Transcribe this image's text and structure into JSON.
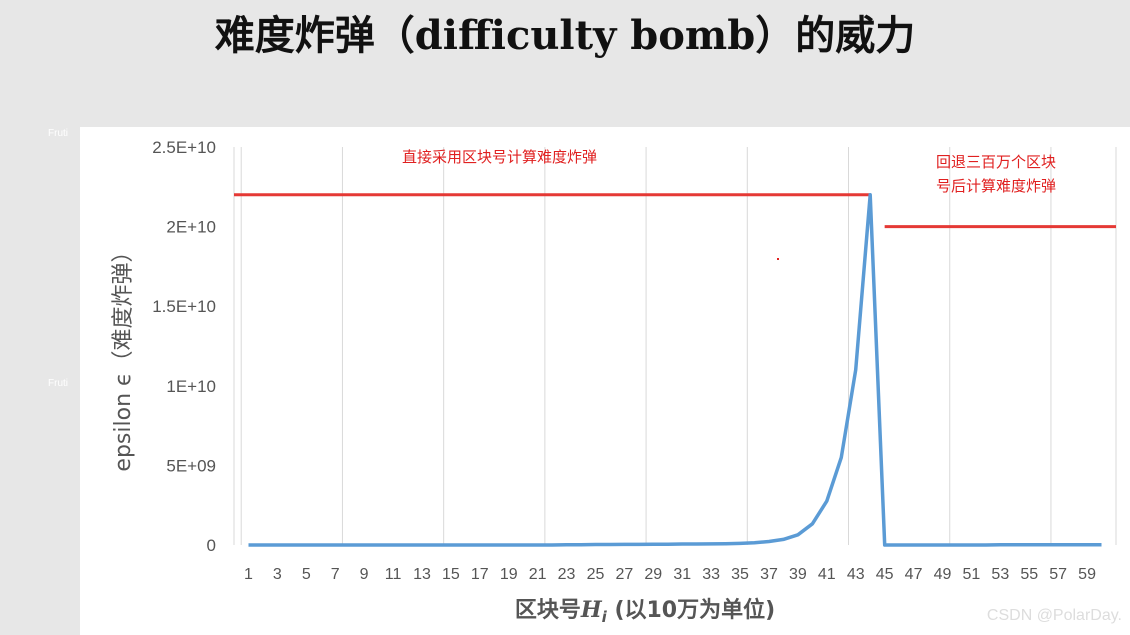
{
  "slide": {
    "title": "难度炸弹（difficulty bomb）的威力",
    "ghost_labels": [
      "Fruti",
      "Fruti"
    ],
    "watermark": "CSDN @PolarDay."
  },
  "chart_data": {
    "type": "line",
    "title": "",
    "xlabel": "区块号",
    "xlabel_var": "H",
    "xlabel_sub": "i",
    "xlabel_suffix": " (以10万为单位)",
    "ylabel": "epsilon ϵ（难度炸弹）",
    "ylim": [
      0,
      25000000000
    ],
    "y_ticks": [
      0,
      5000000000,
      10000000000,
      15000000000,
      20000000000,
      25000000000
    ],
    "y_tick_labels": [
      "0",
      "5E+09",
      "1E+10",
      "1.5E+10",
      "2E+10",
      "2.5E+10"
    ],
    "x_ticks": [
      1,
      3,
      5,
      7,
      9,
      11,
      13,
      15,
      17,
      19,
      21,
      23,
      25,
      27,
      29,
      31,
      33,
      35,
      37,
      39,
      41,
      43,
      45,
      47,
      49,
      51,
      53,
      55,
      57,
      59
    ],
    "grid": "vertical",
    "series": [
      {
        "color": "#5b9bd5",
        "x": [
          1,
          2,
          3,
          4,
          5,
          6,
          7,
          8,
          9,
          10,
          11,
          12,
          13,
          14,
          15,
          16,
          17,
          18,
          19,
          20,
          21,
          22,
          23,
          24,
          25,
          26,
          27,
          28,
          29,
          30,
          31,
          32,
          33,
          34,
          35,
          36,
          37,
          38,
          39,
          40,
          41,
          42,
          43,
          44,
          45,
          46,
          47,
          48,
          49,
          50,
          51,
          52,
          53,
          54,
          55,
          56,
          57,
          58,
          59,
          60
        ],
        "values": [
          0,
          0,
          0,
          0,
          0,
          0,
          0,
          0,
          0,
          0,
          0,
          0,
          0,
          0,
          0,
          0,
          0,
          0,
          0,
          0,
          0,
          0,
          20000000,
          20000000,
          30000000,
          30000000,
          40000000,
          40000000,
          50000000,
          50000000,
          60000000,
          60000000,
          70000000,
          80000000,
          100000000,
          140000000,
          220000000,
          350000000,
          640000000,
          1330000000,
          2760000000,
          5500000000,
          11000000000,
          22000000000,
          0,
          0,
          0,
          0,
          0,
          0,
          0,
          0,
          20000000,
          20000000,
          20000000,
          20000000,
          20000000,
          20000000,
          20000000,
          20000000
        ]
      }
    ],
    "annotations": [
      {
        "text": "直接采用区块号计算难度炸弹",
        "color": "#e02020"
      },
      {
        "text_lines": [
          "回退三百万个区块",
          "号后计算难度炸弹"
        ],
        "color": "#e02020"
      }
    ],
    "reference_lines": [
      {
        "y": 22000000000,
        "x_from": 0,
        "x_to": 44,
        "color": "#e53935"
      },
      {
        "y": 20000000000,
        "x_from": 45,
        "x_to": 61,
        "color": "#e53935"
      }
    ]
  }
}
